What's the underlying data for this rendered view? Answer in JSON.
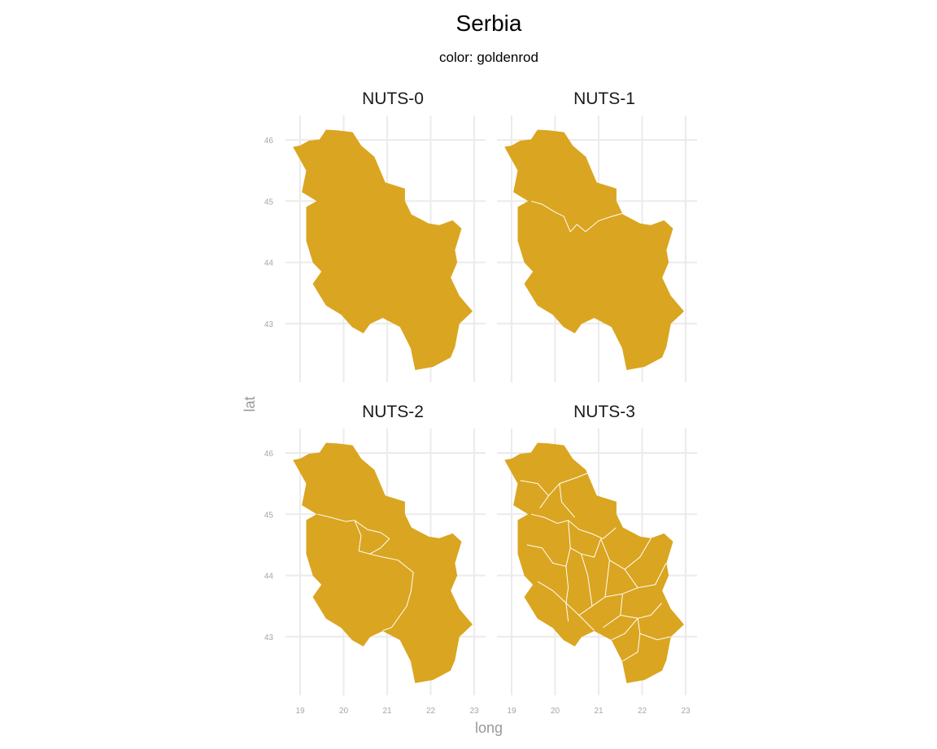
{
  "chart_data": {
    "type": "map",
    "title": "Serbia",
    "subtitle": "color: goldenrod",
    "xlabel": "long",
    "ylabel": "lat",
    "xlim": [
      19,
      23
    ],
    "ylim": [
      42.2,
      46.2
    ],
    "x_ticks": [
      19,
      20,
      21,
      22,
      23
    ],
    "y_ticks": [
      43,
      44,
      45,
      46
    ],
    "fill_color": "#DAA520",
    "border_color": "#ffffff",
    "grid": true,
    "facets": [
      {
        "label": "NUTS-0",
        "regions": 1
      },
      {
        "label": "NUTS-1",
        "regions": 2
      },
      {
        "label": "NUTS-2",
        "regions": 4
      },
      {
        "label": "NUTS-3",
        "regions": 25
      }
    ],
    "outline_lonlat": [
      [
        19.0,
        45.9
      ],
      [
        19.2,
        45.98
      ],
      [
        19.45,
        46.0
      ],
      [
        19.6,
        46.16
      ],
      [
        19.85,
        46.15
      ],
      [
        20.2,
        46.12
      ],
      [
        20.4,
        45.9
      ],
      [
        20.7,
        45.72
      ],
      [
        20.95,
        45.3
      ],
      [
        21.4,
        45.2
      ],
      [
        21.4,
        45.0
      ],
      [
        21.55,
        44.78
      ],
      [
        21.95,
        44.63
      ],
      [
        22.2,
        44.6
      ],
      [
        22.5,
        44.68
      ],
      [
        22.7,
        44.55
      ],
      [
        22.55,
        44.2
      ],
      [
        22.6,
        44.0
      ],
      [
        22.45,
        43.75
      ],
      [
        22.65,
        43.45
      ],
      [
        22.95,
        43.2
      ],
      [
        22.65,
        43.0
      ],
      [
        22.55,
        42.62
      ],
      [
        22.45,
        42.45
      ],
      [
        22.05,
        42.3
      ],
      [
        21.65,
        42.25
      ],
      [
        21.55,
        42.6
      ],
      [
        21.3,
        42.95
      ],
      [
        20.9,
        43.1
      ],
      [
        20.6,
        43.0
      ],
      [
        20.45,
        42.85
      ],
      [
        20.2,
        42.95
      ],
      [
        19.95,
        43.15
      ],
      [
        19.6,
        43.3
      ],
      [
        19.3,
        43.65
      ],
      [
        19.5,
        43.85
      ],
      [
        19.3,
        44.0
      ],
      [
        19.15,
        44.35
      ],
      [
        19.15,
        44.9
      ],
      [
        19.4,
        45.0
      ],
      [
        19.05,
        45.15
      ],
      [
        19.15,
        45.5
      ],
      [
        18.85,
        45.88
      ]
    ]
  }
}
